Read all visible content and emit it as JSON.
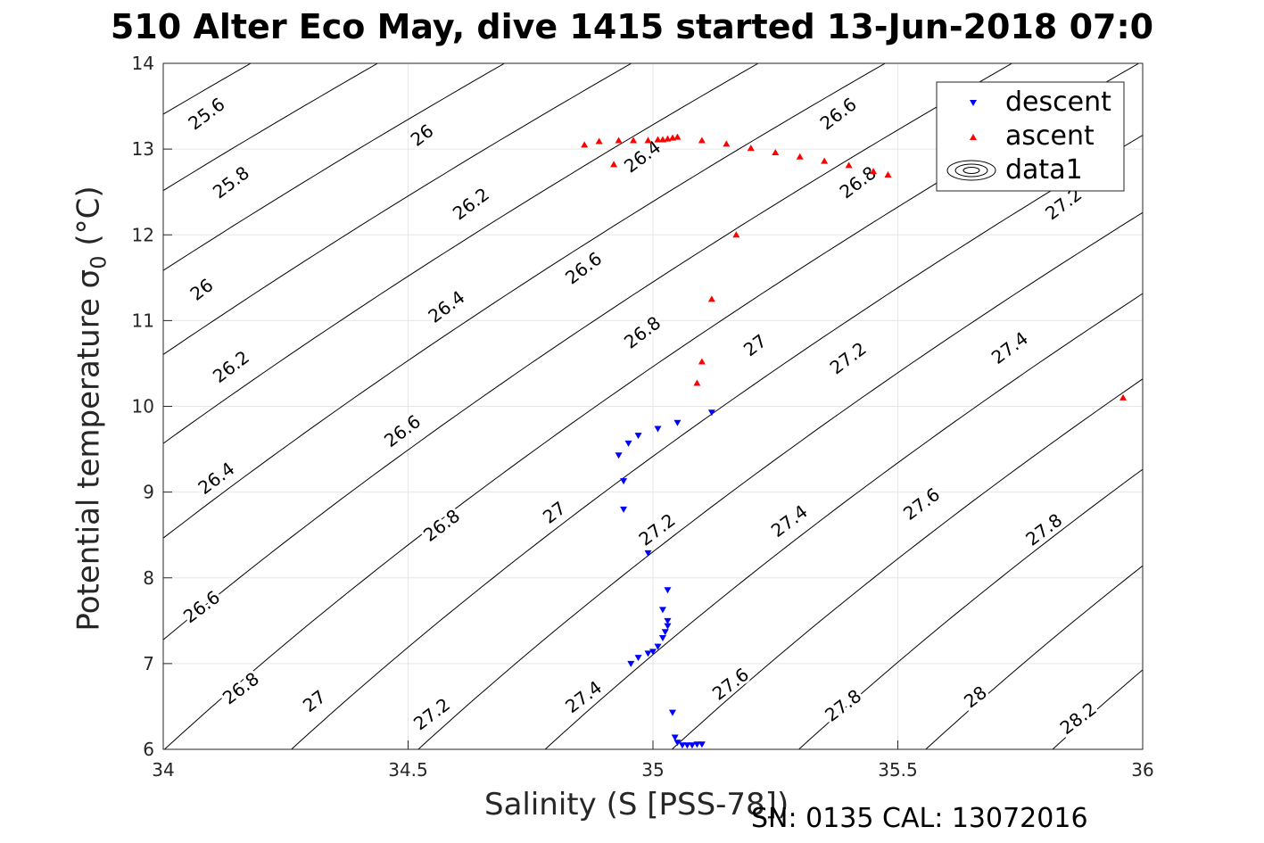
{
  "title": "510 Alter Eco May, dive 1415 started 13-Jun-2018 07:0",
  "footer": "SN: 0135  CAL: 13072016",
  "chart_data": {
    "type": "scatter",
    "xlabel": "Salinity (S [PSS-78])",
    "ylabel_prefix": "Potential temperature σ",
    "ylabel_sub": "0",
    "ylabel_suffix": " (°C)",
    "xlim": [
      34,
      36
    ],
    "ylim": [
      6,
      14
    ],
    "xticks": [
      "34",
      "34.5",
      "35",
      "35.5",
      "36"
    ],
    "yticks": [
      "6",
      "7",
      "8",
      "9",
      "10",
      "11",
      "12",
      "13",
      "14"
    ],
    "grid": true,
    "legend_position": "top-right",
    "legend": [
      "descent",
      "ascent",
      "data1"
    ],
    "colors": {
      "descent": "#0000ff",
      "ascent": "#ff0000",
      "contour": "#000000"
    },
    "series": [
      {
        "name": "descent",
        "marker": "triangle-down",
        "points": [
          [
            35.12,
            9.93
          ],
          [
            35.05,
            9.81
          ],
          [
            35.01,
            9.74
          ],
          [
            34.97,
            9.66
          ],
          [
            34.95,
            9.57
          ],
          [
            34.93,
            9.43
          ],
          [
            34.94,
            9.13
          ],
          [
            34.94,
            8.8
          ],
          [
            34.99,
            8.29
          ],
          [
            35.03,
            7.86
          ],
          [
            35.02,
            7.63
          ],
          [
            35.03,
            7.5
          ],
          [
            35.03,
            7.44
          ],
          [
            35.025,
            7.37
          ],
          [
            35.02,
            7.3
          ],
          [
            35.01,
            7.2
          ],
          [
            35.0,
            7.14
          ],
          [
            34.99,
            7.12
          ],
          [
            34.97,
            7.07
          ],
          [
            34.955,
            7.0
          ],
          [
            35.04,
            6.43
          ],
          [
            35.045,
            6.14
          ],
          [
            35.05,
            6.08
          ],
          [
            35.06,
            6.05
          ],
          [
            35.07,
            6.05
          ],
          [
            35.08,
            6.05
          ],
          [
            35.09,
            6.06
          ],
          [
            35.1,
            6.06
          ]
        ]
      },
      {
        "name": "ascent",
        "marker": "triangle-up",
        "points": [
          [
            35.96,
            10.1
          ],
          [
            35.09,
            10.27
          ],
          [
            35.1,
            10.52
          ],
          [
            35.12,
            11.25
          ],
          [
            35.17,
            12.0
          ],
          [
            34.92,
            12.82
          ],
          [
            34.86,
            13.05
          ],
          [
            34.89,
            13.09
          ],
          [
            34.93,
            13.1
          ],
          [
            34.96,
            13.1
          ],
          [
            34.99,
            13.1
          ],
          [
            35.01,
            13.11
          ],
          [
            35.02,
            13.11
          ],
          [
            35.03,
            13.12
          ],
          [
            35.04,
            13.13
          ],
          [
            35.05,
            13.14
          ],
          [
            35.1,
            13.1
          ],
          [
            35.15,
            13.06
          ],
          [
            35.2,
            13.01
          ],
          [
            35.25,
            12.96
          ],
          [
            35.3,
            12.91
          ],
          [
            35.35,
            12.86
          ],
          [
            35.4,
            12.81
          ],
          [
            35.45,
            12.74
          ],
          [
            35.48,
            12.7
          ]
        ]
      }
    ],
    "contour_labels": [
      [
        "25.6",
        34.09,
        13.4
      ],
      [
        "25.8",
        34.14,
        12.6
      ],
      [
        "26",
        34.08,
        11.35
      ],
      [
        "26.2",
        34.14,
        10.45
      ],
      [
        "26.4",
        34.11,
        9.15
      ],
      [
        "26.6",
        34.08,
        7.65
      ],
      [
        "26.8",
        34.16,
        6.7
      ],
      [
        "26",
        34.53,
        13.15
      ],
      [
        "26.2",
        34.63,
        12.35
      ],
      [
        "26.4",
        34.58,
        11.15
      ],
      [
        "26.6",
        34.49,
        9.7
      ],
      [
        "26.8",
        34.57,
        8.6
      ],
      [
        "27",
        34.31,
        6.55
      ],
      [
        "27.2",
        34.55,
        6.4
      ],
      [
        "26.4",
        34.98,
        12.9
      ],
      [
        "26.6",
        34.86,
        11.6
      ],
      [
        "26.8",
        34.98,
        10.85
      ],
      [
        "27",
        34.8,
        8.75
      ],
      [
        "27.2",
        35.01,
        8.55
      ],
      [
        "27.4",
        34.86,
        6.6
      ],
      [
        "27",
        35.21,
        10.7
      ],
      [
        "27.2",
        35.4,
        10.55
      ],
      [
        "27.4",
        35.28,
        8.65
      ],
      [
        "27.6",
        35.16,
        6.75
      ],
      [
        "26.6",
        35.38,
        13.4
      ],
      [
        "26.8",
        35.42,
        12.6
      ],
      [
        "27.4",
        35.73,
        10.67
      ],
      [
        "27.6",
        35.55,
        8.85
      ],
      [
        "27.8",
        35.39,
        6.5
      ],
      [
        "27.8",
        35.8,
        8.55
      ],
      [
        "28",
        35.66,
        6.6
      ],
      [
        "28.2",
        35.87,
        6.35
      ],
      [
        "27.2",
        35.84,
        12.35
      ]
    ]
  }
}
